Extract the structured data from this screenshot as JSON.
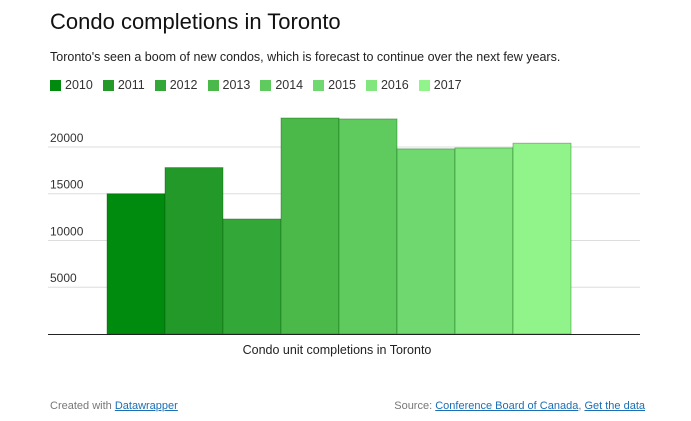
{
  "chart_data": {
    "type": "bar",
    "title": "Condo completions in Toronto",
    "subtitle": "Toronto's seen a boom of new condos, which is forecast to continue over the next few years.",
    "categories": [
      "2010",
      "2011",
      "2012",
      "2013",
      "2014",
      "2015",
      "2016",
      "2017"
    ],
    "values": [
      15000,
      17800,
      12300,
      23100,
      23000,
      19800,
      19900,
      20400
    ],
    "colors": [
      "#008a0e",
      "#23992a",
      "#33a838",
      "#4ab94a",
      "#5fcb5f",
      "#6fd86f",
      "#80e67d",
      "#90f48a"
    ],
    "xlabel": "Condo unit completions in Toronto",
    "ylabel": "",
    "ylim": [
      0,
      23100
    ],
    "yticks": [
      5000,
      10000,
      15000,
      20000
    ],
    "ytick_labels": [
      "5000",
      "10000",
      "15000",
      "20000"
    ],
    "grid": true,
    "legend": "top-left"
  },
  "footer": {
    "created_with_text": "Created with",
    "created_with_link": "Datawrapper",
    "source_text": "Source:",
    "source_link": "Conference Board of Canada",
    "separator": ",",
    "get_data_link": "Get the data"
  }
}
